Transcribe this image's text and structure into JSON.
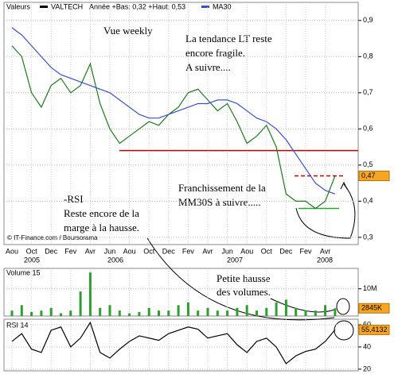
{
  "chart_data": [
    {
      "type": "line",
      "label": "Valeurs",
      "subtitle": "Année +Bas: 0,32 +Haut: 0,53",
      "categories": [
        "Aou",
        null,
        "Oct",
        null,
        "Dec",
        null,
        "Fev",
        null,
        "Avr",
        null,
        "Jun",
        null,
        "Aou",
        null,
        "Oct",
        null,
        "Dec",
        null,
        "Fev",
        null,
        "Avr",
        null,
        "Jun",
        null,
        "Aou",
        null,
        "Oct",
        null,
        "Dec",
        null,
        "Fev",
        null,
        "Avr",
        null
      ],
      "years": [
        "2005",
        "2006",
        "2007",
        "2008"
      ],
      "series": [
        {
          "name": "VALTECH",
          "color": "#1f7a1f",
          "values": [
            0.83,
            0.8,
            0.7,
            0.66,
            0.72,
            0.74,
            0.7,
            0.72,
            0.78,
            0.67,
            0.6,
            0.56,
            0.58,
            0.6,
            0.62,
            0.61,
            0.64,
            0.66,
            0.7,
            0.71,
            0.68,
            0.65,
            0.67,
            0.62,
            0.56,
            0.58,
            0.61,
            0.55,
            0.42,
            0.4,
            0.4,
            0.38,
            0.4,
            0.47
          ]
        },
        {
          "name": "MA30",
          "color": "#3a50d0",
          "values": [
            0.88,
            0.86,
            0.83,
            0.8,
            0.77,
            0.75,
            0.74,
            0.73,
            0.72,
            0.71,
            0.7,
            0.68,
            0.66,
            0.64,
            0.63,
            0.63,
            0.64,
            0.65,
            0.66,
            0.67,
            0.67,
            0.68,
            0.68,
            0.67,
            0.65,
            0.63,
            0.62,
            0.6,
            0.57,
            0.53,
            0.49,
            0.45,
            0.43,
            0.42
          ]
        }
      ],
      "ylim": [
        0.28,
        0.95
      ],
      "yticks": [
        {
          "value": 0.3,
          "label": "0,3"
        },
        {
          "value": 0.4,
          "label": "0,4"
        },
        {
          "value": 0.5,
          "label": "0,5"
        },
        {
          "value": 0.6,
          "label": "0,6"
        },
        {
          "value": 0.7,
          "label": "0,7"
        },
        {
          "value": 0.8,
          "label": "0,8"
        },
        {
          "value": 0.9,
          "label": "0,9"
        }
      ],
      "last_label": {
        "value": 0.47,
        "label": "0,47"
      },
      "reference_lines": [
        {
          "value": 0.54,
          "color": "#c00000",
          "dashed": false
        },
        {
          "value": 0.47,
          "color": "#c00000",
          "dashed": true
        },
        {
          "value": 0.38,
          "color": "#22aa22",
          "dashed": false
        }
      ],
      "grid": true,
      "annotations": [
        "Vue weekly",
        "La tendance LT reste",
        "encore fragile.",
        "A suivre....",
        "-RSI",
        "Reste encore de la",
        "marge à la hausse.",
        "Franchissement de la",
        "MM30S à suivre.....",
        "© IT-Finance.com / Boursorama"
      ]
    },
    {
      "type": "bar",
      "label": "Volume 15",
      "color": "#2e9e2e",
      "values": [
        2000000,
        4000000,
        1500000,
        2000000,
        3000000,
        1000000,
        2000000,
        9000000,
        16000000,
        3000000,
        4000000,
        2000000,
        1000000,
        1500000,
        3000000,
        2000000,
        2000000,
        4000000,
        5000000,
        2000000,
        3000000,
        2000000,
        2000000,
        3000000,
        4000000,
        2000000,
        3000000,
        5000000,
        6000000,
        3000000,
        2000000,
        2000000,
        4000000,
        2845000
      ],
      "ylim": [
        0,
        17500000
      ],
      "yticks": [
        {
          "value": 10000000,
          "label": "10M"
        }
      ],
      "last_label": {
        "value": 2845000,
        "label": "2845K"
      },
      "annotations": [
        "Petite hausse",
        "des volumes."
      ]
    },
    {
      "type": "line",
      "label": "RSI 14",
      "series": [
        {
          "name": "RSI 14",
          "color": "#000000",
          "values": [
            45,
            52,
            38,
            35,
            55,
            58,
            40,
            48,
            62,
            35,
            30,
            38,
            45,
            50,
            48,
            46,
            52,
            55,
            58,
            56,
            48,
            50,
            52,
            42,
            35,
            45,
            48,
            40,
            25,
            32,
            36,
            38,
            45,
            55.4132
          ]
        }
      ],
      "ylim": [
        18.5,
        65
      ],
      "yticks": [
        20,
        40,
        60
      ],
      "last_label": {
        "value": 55.4132,
        "label": "55,4132"
      }
    }
  ]
}
